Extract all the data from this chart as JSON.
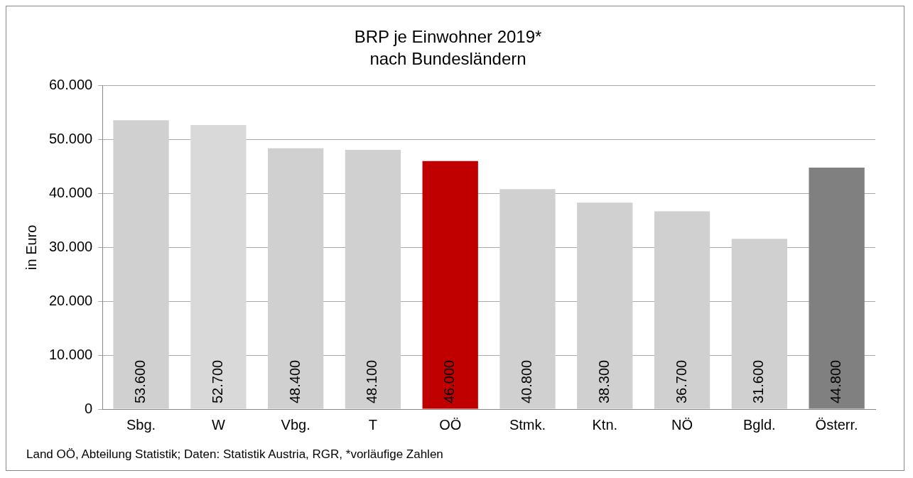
{
  "chart_data": {
    "type": "bar",
    "title": "BRP je Einwohner 2019*",
    "subtitle": "nach Bundesländern",
    "ylabel": "in Euro",
    "categories": [
      "Sbg.",
      "W",
      "Vbg.",
      "T",
      "OÖ",
      "Stmk.",
      "Ktn.",
      "NÖ",
      "Bgld.",
      "Österr."
    ],
    "values": [
      53600,
      52700,
      48400,
      48100,
      46000,
      40800,
      38300,
      36700,
      31600,
      44800
    ],
    "colors": [
      "#d0d0d0",
      "#d9d9d9",
      "#d0d0d0",
      "#d0d0d0",
      "#c00000",
      "#d0d0d0",
      "#d0d0d0",
      "#d0d0d0",
      "#d0d0d0",
      "#808080"
    ],
    "value_labels": [
      "53.600",
      "52.700",
      "48.400",
      "48.100",
      "46.000",
      "40.800",
      "38.300",
      "36.700",
      "31.600",
      "44.800"
    ],
    "ylim": [
      0,
      60000
    ],
    "yticks": [
      0,
      {
        "value": 10000,
        "label": "10.000"
      },
      {
        "value": 20000,
        "label": "20.000"
      },
      {
        "value": 30000,
        "label": "30.000"
      },
      {
        "value": 40000,
        "label": "40.000"
      },
      {
        "value": 50000,
        "label": "50.000"
      },
      {
        "value": 60000,
        "label": "60.000"
      }
    ],
    "grid": "y",
    "legend": false,
    "annotations": [
      "Land OÖ, Abteilung Statistik; Daten: Statistik Austria, RGR, *vorläufige Zahlen"
    ]
  }
}
